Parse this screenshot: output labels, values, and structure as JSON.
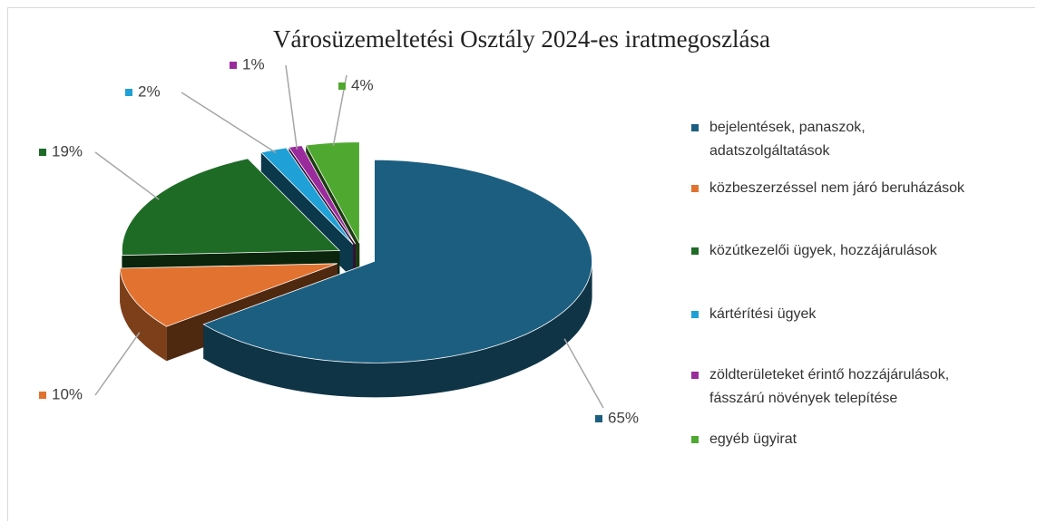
{
  "chart_data": {
    "type": "pie",
    "title": "Városüzemeltetési Osztály 2024-es iratmegoszlása",
    "categories": [
      "bejelentések, panaszok, adatszolgáltatások",
      "közbeszerzéssel nem járó beruházások",
      "közútkezelői ügyek, hozzájárulások",
      "kártérítési ügyek",
      "zöldterületeket érintő hozzájárulások, fásszárú növények telepítése",
      "egyéb ügyirat"
    ],
    "values": [
      65,
      10,
      19,
      2,
      1,
      4
    ],
    "value_labels": [
      "65%",
      "10%",
      "19%",
      "2%",
      "1%",
      "4%"
    ],
    "colors": [
      "#1b5e80",
      "#e2722f",
      "#1e6b26",
      "#1fa0d6",
      "#9a2b9c",
      "#4fa82f"
    ],
    "legend": "right"
  }
}
